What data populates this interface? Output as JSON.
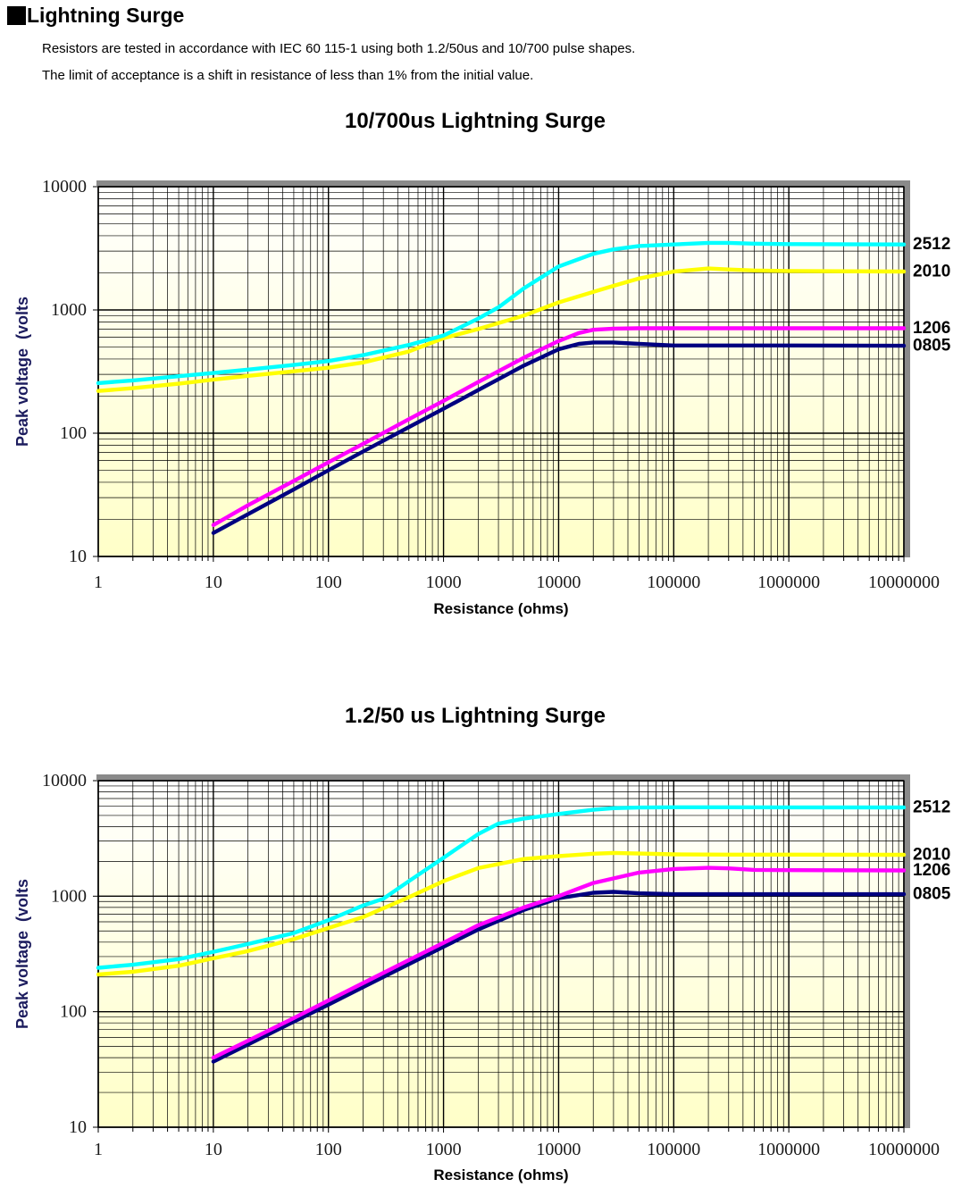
{
  "header": {
    "title": "Lightning Surge",
    "line1": "Resistors are tested in accordance with IEC 60 115-1 using both 1.2/50us and 10/700 pulse shapes.",
    "line2": "The limit of acceptance is a shift in resistance of less than 1% from the initial value."
  },
  "chart_data": [
    {
      "type": "line",
      "title": "10/700us Lightning Surge",
      "xlabel": "Resistance (ohms)",
      "ylabel": "Peak voltage  (volts",
      "x_scale": "log",
      "y_scale": "log",
      "xlim": [
        1,
        10000000
      ],
      "ylim": [
        10,
        10000
      ],
      "x_tick_labels": [
        "1",
        "10",
        "100",
        "1000",
        "10000",
        "100000",
        "1000000",
        "10000000"
      ],
      "y_tick_labels": [
        "10",
        "100",
        "1000",
        "10000"
      ],
      "grid": "log major and minor gridlines on both axes, black",
      "legend_position": "labels at right ends of lines",
      "plot_bg_gradient": [
        "#fffffe",
        "#ffffc8"
      ],
      "frame_shadow_color": "#8a8a8a",
      "series": [
        {
          "name": "0805",
          "color": "#000080",
          "points": [
            [
              10,
              15.5
            ],
            [
              20,
              22
            ],
            [
              50,
              35
            ],
            [
              100,
              50
            ],
            [
              200,
              71
            ],
            [
              500,
              112
            ],
            [
              1000,
              158
            ],
            [
              2000,
              224
            ],
            [
              5000,
              354
            ],
            [
              10000,
              480
            ],
            [
              15000,
              530
            ],
            [
              20000,
              545
            ],
            [
              30000,
              545
            ],
            [
              50000,
              530
            ],
            [
              100000,
              515
            ],
            [
              1000000,
              515
            ],
            [
              10000000,
              512
            ]
          ]
        },
        {
          "name": "1206",
          "color": "#ff00ff",
          "points": [
            [
              10,
              18
            ],
            [
              20,
              26
            ],
            [
              50,
              41
            ],
            [
              100,
              58
            ],
            [
              200,
              82
            ],
            [
              500,
              130
            ],
            [
              1000,
              183
            ],
            [
              2000,
              260
            ],
            [
              5000,
              410
            ],
            [
              10000,
              560
            ],
            [
              15000,
              650
            ],
            [
              20000,
              690
            ],
            [
              30000,
              705
            ],
            [
              50000,
              710
            ],
            [
              100000,
              710
            ],
            [
              1000000,
              710
            ],
            [
              10000000,
              710
            ]
          ]
        },
        {
          "name": "2010",
          "color": "#ffff00",
          "points": [
            [
              1,
              220
            ],
            [
              2,
              232
            ],
            [
              5,
              252
            ],
            [
              10,
              272
            ],
            [
              20,
              292
            ],
            [
              50,
              318
            ],
            [
              100,
              340
            ],
            [
              200,
              375
            ],
            [
              500,
              460
            ],
            [
              1000,
              590
            ],
            [
              2000,
              700
            ],
            [
              5000,
              900
            ],
            [
              10000,
              1150
            ],
            [
              20000,
              1400
            ],
            [
              30000,
              1570
            ],
            [
              50000,
              1800
            ],
            [
              100000,
              2050
            ],
            [
              200000,
              2170
            ],
            [
              300000,
              2130
            ],
            [
              500000,
              2090
            ],
            [
              1000000,
              2070
            ],
            [
              10000000,
              2050
            ]
          ]
        },
        {
          "name": "2512",
          "color": "#00ffff",
          "points": [
            [
              1,
              255
            ],
            [
              2,
              268
            ],
            [
              5,
              290
            ],
            [
              10,
              308
            ],
            [
              20,
              328
            ],
            [
              50,
              358
            ],
            [
              100,
              385
            ],
            [
              200,
              430
            ],
            [
              500,
              520
            ],
            [
              1000,
              620
            ],
            [
              2000,
              850
            ],
            [
              3000,
              1050
            ],
            [
              5000,
              1500
            ],
            [
              10000,
              2250
            ],
            [
              20000,
              2850
            ],
            [
              30000,
              3100
            ],
            [
              50000,
              3300
            ],
            [
              100000,
              3400
            ],
            [
              200000,
              3500
            ],
            [
              300000,
              3500
            ],
            [
              500000,
              3450
            ],
            [
              1000000,
              3420
            ],
            [
              10000000,
              3400
            ]
          ]
        }
      ]
    },
    {
      "type": "line",
      "title": "1.2/50 us Lightning Surge",
      "xlabel": "Resistance (ohms)",
      "ylabel": "Peak voltage  (volts",
      "x_scale": "log",
      "y_scale": "log",
      "xlim": [
        1,
        10000000
      ],
      "ylim": [
        10,
        10000
      ],
      "x_tick_labels": [
        "1",
        "10",
        "100",
        "1000",
        "10000",
        "100000",
        "1000000",
        "10000000"
      ],
      "y_tick_labels": [
        "10",
        "100",
        "1000",
        "10000"
      ],
      "grid": "log major and minor gridlines on both axes, black",
      "legend_position": "labels at right ends of lines",
      "plot_bg_gradient": [
        "#fffffe",
        "#ffffc8"
      ],
      "frame_shadow_color": "#8a8a8a",
      "series": [
        {
          "name": "0805",
          "color": "#000080",
          "points": [
            [
              10,
              37
            ],
            [
              20,
              52
            ],
            [
              50,
              82
            ],
            [
              100,
              115
            ],
            [
              200,
              163
            ],
            [
              500,
              258
            ],
            [
              1000,
              365
            ],
            [
              2000,
              515
            ],
            [
              5000,
              760
            ],
            [
              10000,
              960
            ],
            [
              20000,
              1070
            ],
            [
              30000,
              1090
            ],
            [
              50000,
              1060
            ],
            [
              100000,
              1040
            ],
            [
              300000,
              1040
            ],
            [
              1000000,
              1040
            ],
            [
              10000000,
              1040
            ]
          ]
        },
        {
          "name": "1206",
          "color": "#ff00ff",
          "points": [
            [
              10,
              40
            ],
            [
              20,
              56
            ],
            [
              50,
              88
            ],
            [
              100,
              125
            ],
            [
              200,
              177
            ],
            [
              500,
              280
            ],
            [
              1000,
              395
            ],
            [
              2000,
              560
            ],
            [
              5000,
              800
            ],
            [
              10000,
              1000
            ],
            [
              20000,
              1300
            ],
            [
              50000,
              1600
            ],
            [
              100000,
              1720
            ],
            [
              200000,
              1760
            ],
            [
              300000,
              1740
            ],
            [
              500000,
              1690
            ],
            [
              1000000,
              1680
            ],
            [
              10000000,
              1670
            ]
          ]
        },
        {
          "name": "2010",
          "color": "#ffff00",
          "points": [
            [
              1,
              210
            ],
            [
              2,
              222
            ],
            [
              5,
              250
            ],
            [
              10,
              290
            ],
            [
              20,
              335
            ],
            [
              50,
              425
            ],
            [
              100,
              530
            ],
            [
              200,
              660
            ],
            [
              500,
              980
            ],
            [
              1000,
              1350
            ],
            [
              2000,
              1750
            ],
            [
              5000,
              2100
            ],
            [
              10000,
              2220
            ],
            [
              20000,
              2330
            ],
            [
              30000,
              2370
            ],
            [
              50000,
              2340
            ],
            [
              100000,
              2300
            ],
            [
              300000,
              2290
            ],
            [
              1000000,
              2290
            ],
            [
              10000000,
              2280
            ]
          ]
        },
        {
          "name": "2512",
          "color": "#00ffff",
          "points": [
            [
              1,
              240
            ],
            [
              2,
              255
            ],
            [
              5,
              285
            ],
            [
              10,
              330
            ],
            [
              20,
              385
            ],
            [
              50,
              480
            ],
            [
              100,
              620
            ],
            [
              200,
              830
            ],
            [
              300,
              950
            ],
            [
              500,
              1350
            ],
            [
              1000,
              2150
            ],
            [
              2000,
              3450
            ],
            [
              3000,
              4250
            ],
            [
              5000,
              4700
            ],
            [
              10000,
              5150
            ],
            [
              20000,
              5600
            ],
            [
              30000,
              5780
            ],
            [
              50000,
              5850
            ],
            [
              100000,
              5880
            ],
            [
              300000,
              5880
            ],
            [
              1000000,
              5870
            ],
            [
              10000000,
              5860
            ]
          ]
        }
      ]
    }
  ]
}
